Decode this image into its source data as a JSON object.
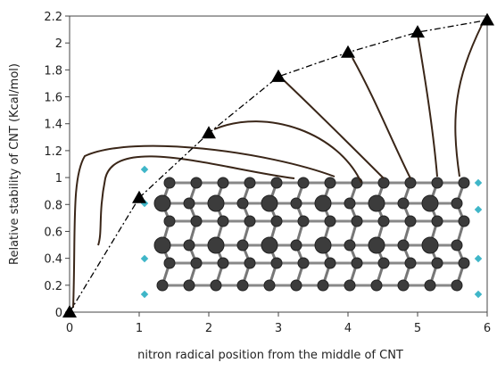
{
  "chart_data": {
    "type": "line",
    "x_label": "nitron radical position from the middle of CNT",
    "y_label": "Relative stability of CNT (Kcal/mol)",
    "x": [
      0,
      1,
      2,
      3,
      4,
      5,
      6
    ],
    "series": [
      {
        "color": "#000000",
        "values": [
          0,
          0.85,
          1.33,
          1.75,
          1.93,
          2.08,
          2.17
        ]
      }
    ],
    "xlim": [
      0,
      6
    ],
    "xticks": [
      0,
      1,
      2,
      3,
      4,
      5,
      6
    ],
    "ylim": [
      0,
      2.2
    ],
    "yticks": [
      0,
      0.2,
      0.4,
      0.6,
      0.8,
      1,
      1.2,
      1.4,
      1.6,
      1.8,
      2,
      2.2
    ]
  }
}
